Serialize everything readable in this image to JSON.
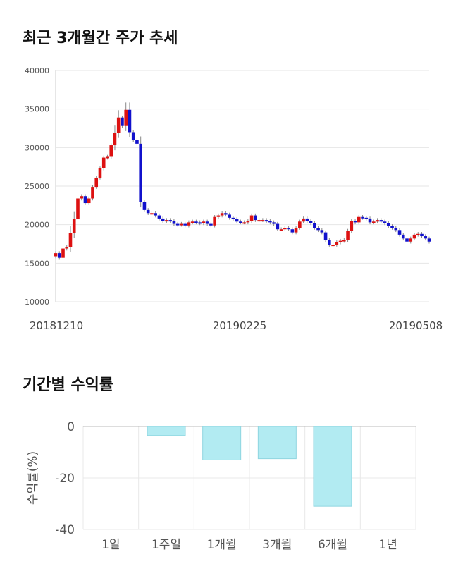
{
  "sections": {
    "price_title": "최근 3개월간 주가 추세",
    "return_title": "기간별 수익률"
  },
  "chart_data": [
    {
      "type": "candlestick",
      "ylim": [
        10000,
        40000
      ],
      "yticks": [
        10000,
        15000,
        20000,
        25000,
        30000,
        35000,
        40000
      ],
      "xtick_labels": [
        "20181210",
        "20190225",
        "20190508"
      ],
      "grid": true,
      "up_color": "#dd1111",
      "down_color": "#1111cc",
      "closes": [
        16300,
        15700,
        16900,
        17100,
        18900,
        20700,
        23400,
        23700,
        22800,
        23400,
        24900,
        26100,
        27300,
        28700,
        28800,
        30300,
        31900,
        33900,
        32800,
        34900,
        32000,
        31000,
        30500,
        22900,
        21900,
        21500,
        21500,
        21200,
        20800,
        20500,
        20600,
        20500,
        20100,
        20000,
        20100,
        19900,
        20300,
        20400,
        20300,
        20200,
        20400,
        20100,
        19900,
        21000,
        21200,
        21500,
        21300,
        20900,
        20700,
        20400,
        20300,
        20300,
        20500,
        21200,
        20600,
        20600,
        20600,
        20500,
        20300,
        20100,
        19400,
        19400,
        19600,
        19400,
        19000,
        19600,
        20400,
        20800,
        20500,
        20200,
        19600,
        19300,
        19000,
        18000,
        17400,
        17400,
        17700,
        17900,
        18000,
        19200,
        20500,
        20300,
        21000,
        20900,
        20800,
        20300,
        20400,
        20600,
        20400,
        20200,
        19800,
        19600,
        19300,
        18700,
        18200,
        17800,
        18200,
        18700,
        18800,
        18500,
        18200,
        17800
      ]
    },
    {
      "type": "bar",
      "title": "기간별 수익률",
      "ylabel": "수익률(%)",
      "categories": [
        "1일",
        "1주일",
        "1개월",
        "3개월",
        "6개월",
        "1년"
      ],
      "values": [
        0,
        -3.5,
        -13,
        -12.5,
        -31,
        0
      ],
      "ylim": [
        -40,
        0
      ],
      "yticks": [
        0,
        -20,
        -40
      ],
      "bar_color": "#b2ebf2",
      "bar_edge": "#8fd6e0"
    }
  ]
}
